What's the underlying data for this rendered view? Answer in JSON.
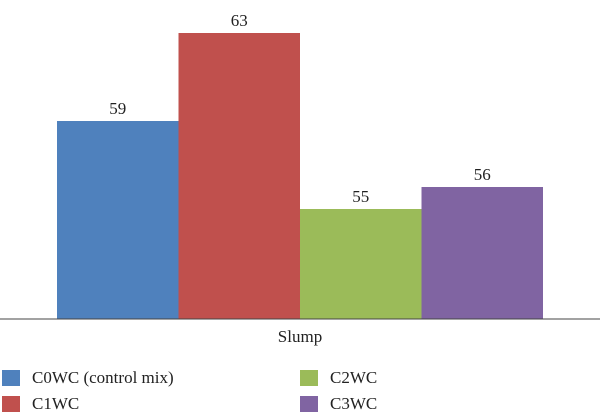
{
  "chart_data": {
    "type": "bar",
    "categories": [
      "Slump"
    ],
    "series": [
      {
        "name": "C0WC (control mix)",
        "values": [
          59
        ],
        "color": "#4f81bd"
      },
      {
        "name": "C1WC",
        "values": [
          63
        ],
        "color": "#c0504d"
      },
      {
        "name": "C2WC",
        "values": [
          55
        ],
        "color": "#9bbb59"
      },
      {
        "name": "C3WC",
        "values": [
          56
        ],
        "color": "#8064a2"
      }
    ],
    "title": "",
    "xlabel": "",
    "ylabel": "",
    "ylim": [
      50,
      63.5
    ],
    "grid": false,
    "legend_position": "bottom",
    "value_labels": true
  }
}
